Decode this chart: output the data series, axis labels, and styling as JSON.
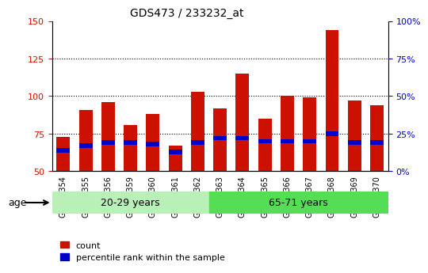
{
  "title": "GDS473 / 233232_at",
  "samples": [
    "GSM10354",
    "GSM10355",
    "GSM10356",
    "GSM10359",
    "GSM10360",
    "GSM10361",
    "GSM10362",
    "GSM10363",
    "GSM10364",
    "GSM10365",
    "GSM10366",
    "GSM10367",
    "GSM10368",
    "GSM10369",
    "GSM10370"
  ],
  "count_values": [
    73,
    91,
    96,
    81,
    88,
    67,
    103,
    92,
    115,
    85,
    100,
    99,
    144,
    97,
    94
  ],
  "percentile_values": [
    64,
    67,
    69,
    69,
    68,
    63,
    69,
    72,
    72,
    70,
    70,
    70,
    75,
    69,
    69
  ],
  "bar_bottom": 50,
  "ylim_left": [
    50,
    150
  ],
  "ylim_right": [
    0,
    100
  ],
  "yticks_left": [
    50,
    75,
    100,
    125,
    150
  ],
  "yticks_right": [
    0,
    25,
    50,
    75,
    100
  ],
  "ytick_labels_right": [
    "0%",
    "25%",
    "50%",
    "75%",
    "100%"
  ],
  "group1_label": "20-29 years",
  "group2_label": "65-71 years",
  "group1_count": 7,
  "group2_count": 8,
  "age_label": "age",
  "legend_count_label": "count",
  "legend_percentile_label": "percentile rank within the sample",
  "bar_color": "#cc1100",
  "percentile_color": "#0000cc",
  "group1_bg": "#b8f0b8",
  "group2_bg": "#55dd55",
  "plot_bg": "#ffffff",
  "grid_color": "#000000",
  "left_tick_color": "#cc1100",
  "right_tick_color": "#0000cc",
  "bar_width": 0.6,
  "gridlines": [
    75,
    100,
    125
  ]
}
